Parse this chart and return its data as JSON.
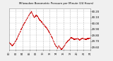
{
  "title": "Milwaukee Barometric Pressure per Minute (24 Hours)",
  "background_color": "#f0f0f0",
  "plot_bg_color": "#ffffff",
  "grid_color": "#aaaaaa",
  "line_color": "#cc0000",
  "ylim": [
    29.55,
    30.25
  ],
  "yticks": [
    29.6,
    29.7,
    29.8,
    29.9,
    30.0,
    30.1,
    30.2
  ],
  "ytick_labels": [
    "29.60",
    "29.70",
    "29.80",
    "29.90",
    "30.00",
    "30.10",
    "30.20"
  ],
  "pressure_profile": [
    [
      0,
      29.68
    ],
    [
      60,
      29.62
    ],
    [
      120,
      29.7
    ],
    [
      180,
      29.82
    ],
    [
      240,
      29.95
    ],
    [
      300,
      30.05
    ],
    [
      360,
      30.15
    ],
    [
      400,
      30.2
    ],
    [
      420,
      30.14
    ],
    [
      450,
      30.1
    ],
    [
      480,
      30.14
    ],
    [
      510,
      30.11
    ],
    [
      540,
      30.06
    ],
    [
      560,
      30.04
    ],
    [
      580,
      30.02
    ],
    [
      600,
      29.99
    ],
    [
      630,
      29.96
    ],
    [
      660,
      29.93
    ],
    [
      700,
      29.87
    ],
    [
      740,
      29.8
    ],
    [
      780,
      29.72
    ],
    [
      820,
      29.63
    ],
    [
      860,
      29.58
    ],
    [
      880,
      29.62
    ],
    [
      900,
      29.59
    ],
    [
      920,
      29.56
    ],
    [
      950,
      29.58
    ],
    [
      980,
      29.62
    ],
    [
      1010,
      29.67
    ],
    [
      1060,
      29.72
    ],
    [
      1100,
      29.76
    ],
    [
      1150,
      29.73
    ],
    [
      1200,
      29.74
    ],
    [
      1250,
      29.72
    ],
    [
      1300,
      29.75
    ],
    [
      1350,
      29.73
    ],
    [
      1400,
      29.74
    ],
    [
      1440,
      29.75
    ]
  ],
  "x_grid_positions": [
    120,
    240,
    360,
    480,
    600,
    720,
    840,
    960,
    1080,
    1200,
    1320
  ],
  "x_tick_positions": [
    0,
    120,
    240,
    360,
    480,
    600,
    720,
    840,
    960,
    1080,
    1200,
    1320,
    1440
  ],
  "x_tick_labels": [
    "00",
    "02",
    "04",
    "06",
    "08",
    "10",
    "12",
    "14",
    "16",
    "18",
    "20",
    "22",
    "24"
  ]
}
